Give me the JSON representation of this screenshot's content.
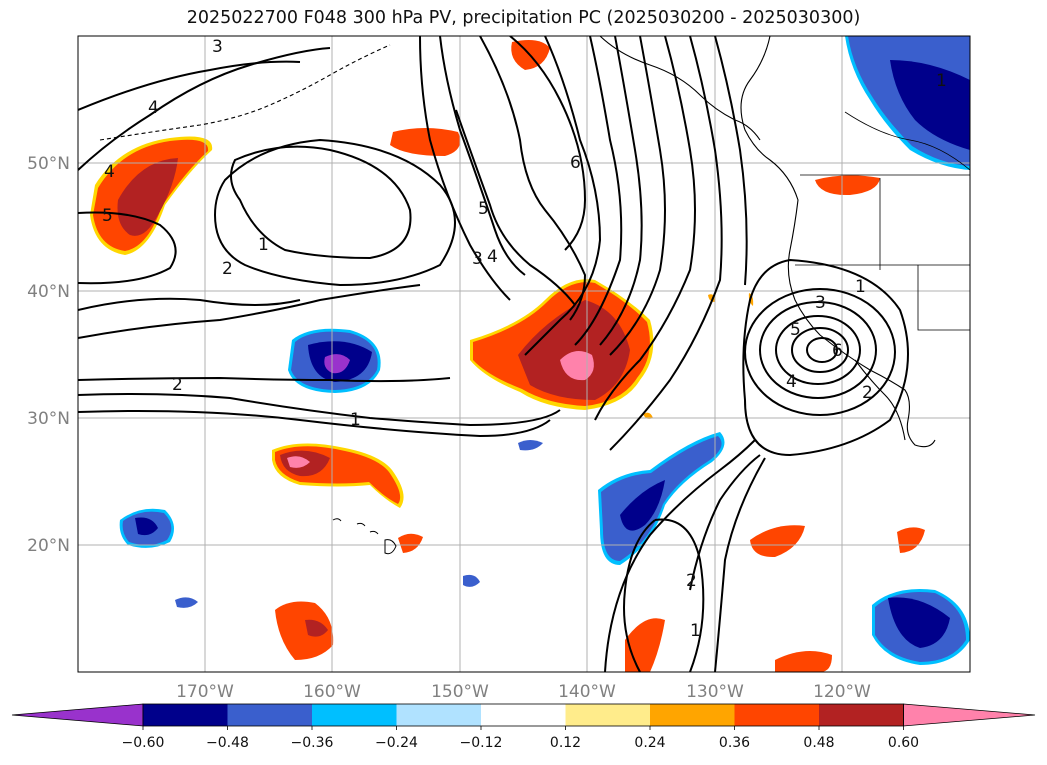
{
  "title": "2025022700 F048 300 hPa PV, precipitation PC (2025030200 - 2025030300)",
  "map": {
    "lon_ticks": [
      "170°W",
      "160°W",
      "150°W",
      "140°W",
      "130°W",
      "120°W"
    ],
    "lat_ticks": [
      "50°N",
      "40°N",
      "30°N",
      "20°N"
    ],
    "gridlines": true,
    "coastlines": true
  },
  "colorbar": {
    "orientation": "horizontal",
    "extend": "both",
    "levels": [
      -0.6,
      -0.48,
      -0.36,
      -0.24,
      -0.12,
      0.12,
      0.24,
      0.36,
      0.48,
      0.6
    ],
    "tick_labels": [
      "−0.60",
      "−0.48",
      "−0.36",
      "−0.24",
      "−0.12",
      "0.12",
      "0.24",
      "0.36",
      "0.48",
      "0.60"
    ],
    "colors": [
      "#9932cc",
      "#00008b",
      "#3a5fcd",
      "#00bfff",
      "#b0e2ff",
      "#ffffff",
      "#ffec8b",
      "#ffa500",
      "#ff4500",
      "#b22222",
      "#ff82ab"
    ]
  },
  "contour_labels": [
    {
      "text": "3"
    },
    {
      "text": "4"
    },
    {
      "text": "4"
    },
    {
      "text": "5"
    },
    {
      "text": "1"
    },
    {
      "text": "2"
    },
    {
      "text": "5"
    },
    {
      "text": "4"
    },
    {
      "text": "3"
    },
    {
      "text": "6"
    },
    {
      "text": "2"
    },
    {
      "text": "1"
    },
    {
      "text": "1"
    },
    {
      "text": "3"
    },
    {
      "text": "5"
    },
    {
      "text": "6"
    },
    {
      "text": "4"
    },
    {
      "text": "2"
    },
    {
      "text": "2"
    },
    {
      "text": "1"
    },
    {
      "text": "1"
    }
  ]
}
